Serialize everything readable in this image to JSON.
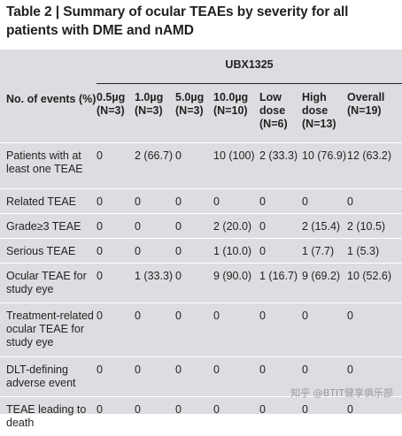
{
  "title": "Table 2 | Summary of ocular TEAEs by severity for all patients with DME and nAMD",
  "group_header": "UBX1325",
  "row_header": "No. of events (%)",
  "columns": [
    "0.5µg (N=3)",
    "1.0µg (N=3)",
    "5.0µg (N=3)",
    "10.0µg (N=10)",
    "Low dose (N=6)",
    "High dose (N=13)",
    "Overall (N=19)"
  ],
  "rows": [
    {
      "label": "Patients with at least one TEAE",
      "values": [
        "0",
        "2 (66.7)",
        "0",
        "10 (100)",
        "2 (33.3)",
        "10 (76.9)",
        "12 (63.2)"
      ]
    },
    {
      "label": "Related TEAE",
      "values": [
        "0",
        "0",
        "0",
        "0",
        "0",
        "0",
        "0"
      ]
    },
    {
      "label": "Grade≥3 TEAE",
      "values": [
        "0",
        "0",
        "0",
        "2 (20.0)",
        "0",
        "2 (15.4)",
        "2 (10.5)"
      ]
    },
    {
      "label": "Serious TEAE",
      "values": [
        "0",
        "0",
        "0",
        "1 (10.0)",
        "0",
        "1 (7.7)",
        "1 (5.3)"
      ]
    },
    {
      "label": "Ocular TEAE for study eye",
      "values": [
        "0",
        "1 (33.3)",
        "0",
        "9 (90.0)",
        "1 (16.7)",
        "9 (69.2)",
        "10 (52.6)"
      ]
    },
    {
      "label": "Treatment-related ocular TEAE for study eye",
      "values": [
        "0",
        "0",
        "0",
        "0",
        "0",
        "0",
        "0"
      ]
    },
    {
      "label": "DLT-defining adverse event",
      "values": [
        "0",
        "0",
        "0",
        "0",
        "0",
        "0",
        "0"
      ]
    },
    {
      "label": "TEAE leading to death",
      "values": [
        "0",
        "0",
        "0",
        "0",
        "0",
        "0",
        "0"
      ]
    }
  ],
  "watermark": "知乎 @BTIT健享俱乐部"
}
